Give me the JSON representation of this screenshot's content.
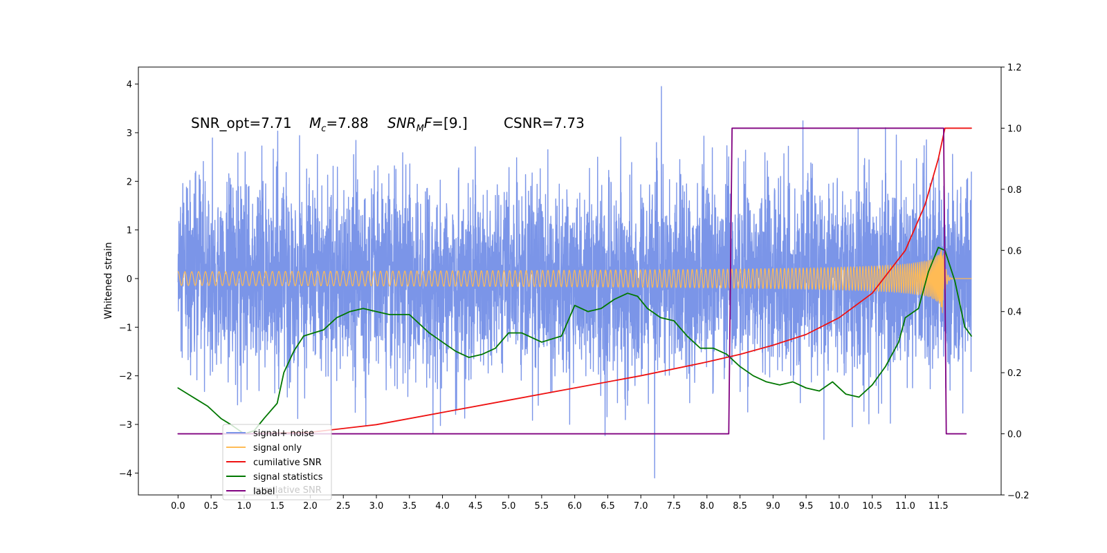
{
  "chart_data": {
    "type": "line",
    "ylabel": "Whitened strain",
    "x_range": [
      -0.6,
      12.45
    ],
    "x_ticks": [
      0.0,
      0.5,
      1.0,
      1.5,
      2.0,
      2.5,
      3.0,
      3.5,
      4.0,
      4.5,
      5.0,
      5.5,
      6.0,
      6.5,
      7.0,
      7.5,
      8.0,
      8.5,
      9.0,
      9.5,
      10.0,
      10.5,
      11.0,
      11.5
    ],
    "y_left_range": [
      -4.45,
      4.35
    ],
    "y_left_ticks": [
      -4,
      -3,
      -2,
      -1,
      0,
      1,
      2,
      3,
      4
    ],
    "y_right_range": [
      -0.2,
      1.2
    ],
    "y_right_ticks": [
      -0.2,
      0.0,
      0.2,
      0.4,
      0.6,
      0.8,
      1.0,
      1.2
    ],
    "grid": false,
    "legend_position": "lower-left",
    "annotations": {
      "snr_opt": "SNR_opt=7.71",
      "mc_symbol": "M",
      "mc_sub": "c",
      "mc_value": "=7.88",
      "snrmf_symbol": "SNR",
      "snrmf_sub": "M",
      "snrmf_tail": "F",
      "snrmf_value": "=[9.]",
      "csnr": "CSNR=7.73"
    },
    "legend_ghost_text": "cumilative SNR",
    "series": [
      {
        "name": "signal+ noise",
        "color": "#7b95e8",
        "axis": "left",
        "kind": "noise",
        "t_start": 0.0,
        "t_end": 12.0,
        "envelope_sigma": 1.0,
        "peak_max": 3.95,
        "peak_min": -4.1
      },
      {
        "name": "signal only",
        "color": "#ffbb55",
        "axis": "left",
        "kind": "chirp",
        "t_start": 0.0,
        "t_end": 12.0,
        "t_merger": 11.58,
        "amplitude_at_merger": 0.7
      },
      {
        "name": "cumilative SNR",
        "color": "#ee1111",
        "axis": "right",
        "kind": "curve",
        "x": [
          1.0,
          2.0,
          3.0,
          4.0,
          5.0,
          6.0,
          7.0,
          8.0,
          8.5,
          9.0,
          9.5,
          10.0,
          10.5,
          11.0,
          11.3,
          11.5,
          11.6,
          11.8,
          12.0
        ],
        "y": [
          0.0,
          0.005,
          0.03,
          0.07,
          0.11,
          0.15,
          0.19,
          0.235,
          0.26,
          0.29,
          0.325,
          0.38,
          0.46,
          0.6,
          0.75,
          0.9,
          1.0,
          1.0,
          1.0
        ]
      },
      {
        "name": "signal statistics",
        "color": "#007700",
        "axis": "right",
        "kind": "curve",
        "x": [
          0.0,
          0.15,
          0.3,
          0.45,
          0.55,
          0.65,
          0.8,
          1.0,
          1.15,
          1.3,
          1.5,
          1.6,
          1.75,
          1.9,
          2.05,
          2.2,
          2.4,
          2.5,
          2.6,
          2.8,
          3.0,
          3.2,
          3.5,
          3.8,
          4.0,
          4.2,
          4.4,
          4.6,
          4.8,
          5.0,
          5.2,
          5.5,
          5.8,
          6.0,
          6.2,
          6.4,
          6.6,
          6.8,
          6.95,
          7.1,
          7.3,
          7.5,
          7.7,
          7.9,
          8.1,
          8.3,
          8.5,
          8.7,
          8.9,
          9.1,
          9.3,
          9.5,
          9.7,
          9.9,
          10.1,
          10.3,
          10.5,
          10.7,
          10.9,
          11.0,
          11.2,
          11.35,
          11.5,
          11.6,
          11.75,
          11.9,
          12.0
        ],
        "y": [
          0.15,
          0.13,
          0.11,
          0.09,
          0.07,
          0.05,
          0.03,
          0.0,
          0.01,
          0.05,
          0.1,
          0.2,
          0.27,
          0.32,
          0.33,
          0.34,
          0.38,
          0.39,
          0.4,
          0.41,
          0.4,
          0.39,
          0.39,
          0.33,
          0.3,
          0.27,
          0.25,
          0.26,
          0.28,
          0.33,
          0.33,
          0.3,
          0.32,
          0.42,
          0.4,
          0.41,
          0.44,
          0.46,
          0.45,
          0.41,
          0.38,
          0.37,
          0.32,
          0.28,
          0.28,
          0.26,
          0.22,
          0.19,
          0.17,
          0.16,
          0.17,
          0.15,
          0.14,
          0.17,
          0.13,
          0.12,
          0.16,
          0.22,
          0.3,
          0.38,
          0.41,
          0.53,
          0.61,
          0.6,
          0.5,
          0.35,
          0.32
        ]
      },
      {
        "name": "label",
        "color": "#800080",
        "axis": "right",
        "kind": "curve",
        "x": [
          0.0,
          8.33,
          8.38,
          11.56,
          11.58,
          11.62,
          11.92
        ],
        "y": [
          0.0,
          0.0,
          1.0,
          1.0,
          1.0,
          0.0,
          0.0
        ]
      }
    ]
  }
}
